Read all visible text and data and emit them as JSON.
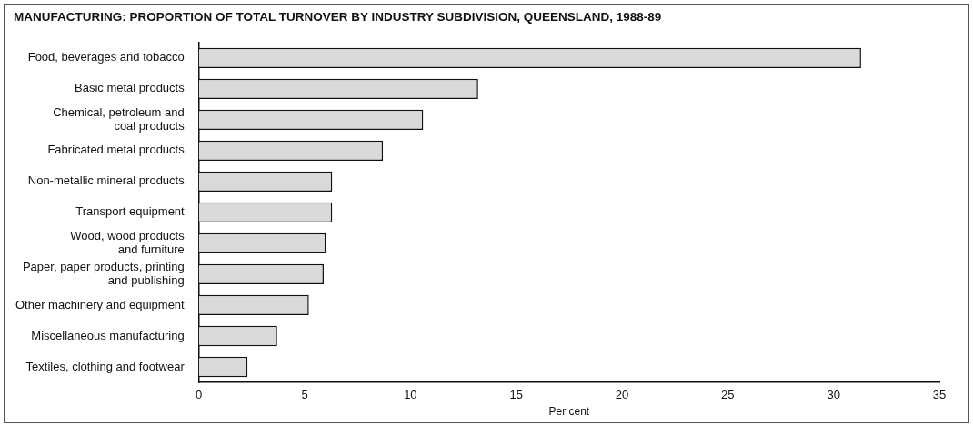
{
  "chart_data": {
    "type": "bar",
    "orientation": "horizontal",
    "title": "MANUFACTURING:  PROPORTION OF TOTAL TURNOVER BY INDUSTRY SUBDIVISION, QUEENSLAND, 1988-89",
    "categories": [
      "Food, beverages and tobacco",
      "Basic metal products",
      "Chemical, petroleum and\ncoal products",
      "Fabricated metal products",
      "Non-metallic mineral products",
      "Transport equipment",
      "Wood, wood products\nand furniture",
      "Paper, paper products, printing\nand publishing",
      "Other machinery and equipment",
      "Miscellaneous manufacturing",
      "Textiles, clothing and footwear"
    ],
    "values": [
      31.3,
      13.2,
      10.6,
      8.7,
      6.3,
      6.3,
      6.0,
      5.9,
      5.2,
      3.7,
      2.3
    ],
    "color": "#d9d9d9",
    "xlabel": "Per cent",
    "xlim": [
      0,
      35
    ],
    "xticks": [
      0,
      5,
      10,
      15,
      20,
      25,
      30,
      35
    ],
    "grid": false,
    "legend": false
  }
}
